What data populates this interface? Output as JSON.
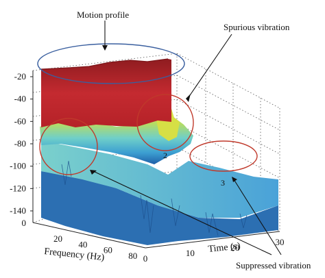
{
  "chart_data": {
    "type": "surface",
    "title": "",
    "xlabel": "Frequency (Hz)",
    "ylabel": "Time (s)",
    "zlabel": "",
    "x_ticks": [
      20,
      40,
      60,
      80
    ],
    "y_ticks": [
      0,
      10,
      20,
      30
    ],
    "z_ticks": [
      -20,
      -40,
      -60,
      -80,
      -100,
      -120,
      -140
    ],
    "z_floor_label": 0,
    "xlim": [
      0,
      90
    ],
    "ylim": [
      0,
      30
    ],
    "zlim": [
      -145,
      -15
    ],
    "grid": true,
    "surface_levels": {
      "low_frequency_band_level": -20,
      "yellow_plateau_level": -75,
      "spurious_peak_level": -60,
      "cyan_floor_level": -105,
      "noise_floor_level": -135
    },
    "annotations": [
      {
        "text": "Motion profile",
        "target": "red low-frequency block"
      },
      {
        "text": "Spurious vibration",
        "target": "region 2"
      },
      {
        "text": "Suppressed vibration",
        "target": "regions 1 and 3"
      }
    ],
    "region_labels": [
      "2",
      "3"
    ],
    "colors": {
      "motion_profile": "#c0272d",
      "yellow_level": "#d8e04a",
      "cyan_level": "#5cc3cf",
      "blue_level": "#2f77b8",
      "ellipse_red": "#c0392b",
      "ellipse_blue": "#3a5f9f"
    }
  }
}
